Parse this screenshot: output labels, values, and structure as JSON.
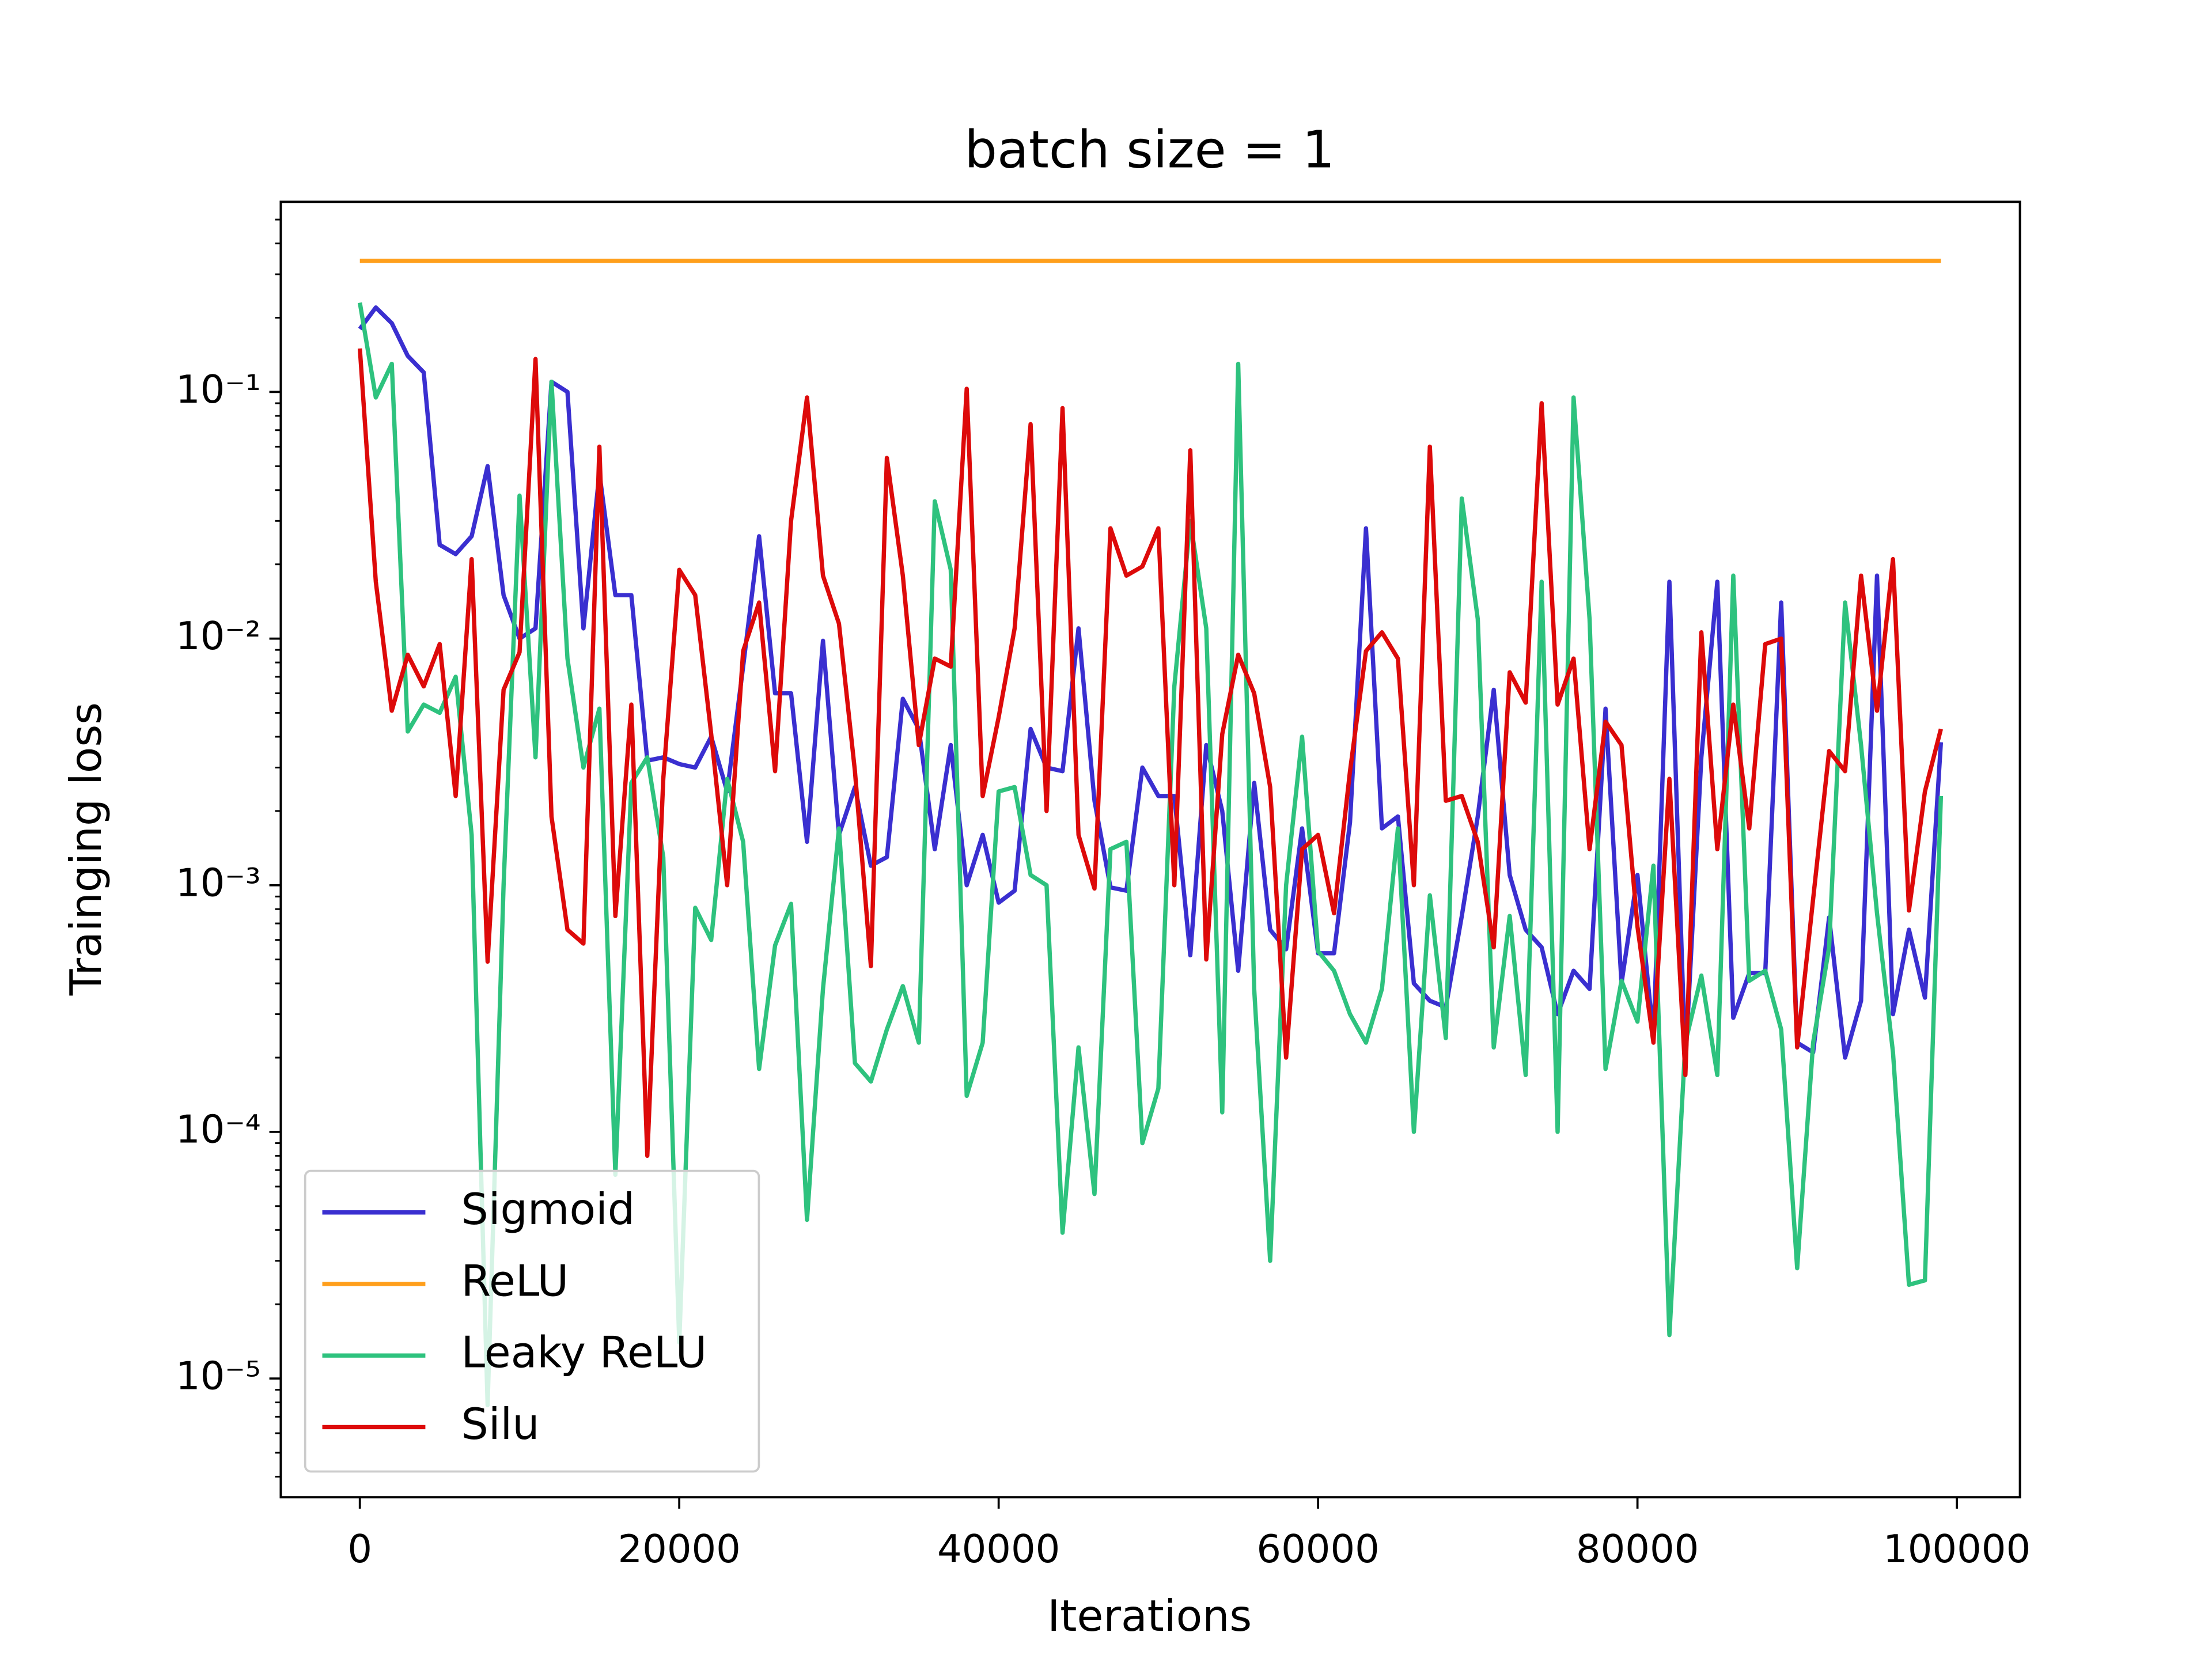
{
  "chart_data": {
    "type": "line",
    "title": "batch size = 1",
    "xlabel": "Iterations",
    "ylabel": "Trainging loss",
    "x": [
      0,
      1000,
      2000,
      3000,
      4000,
      5000,
      6000,
      7000,
      8000,
      9000,
      10000,
      11000,
      12000,
      13000,
      14000,
      15000,
      16000,
      17000,
      18000,
      19000,
      20000,
      21000,
      22000,
      23000,
      24000,
      25000,
      26000,
      27000,
      28000,
      29000,
      30000,
      31000,
      32000,
      33000,
      34000,
      35000,
      36000,
      37000,
      38000,
      39000,
      40000,
      41000,
      42000,
      43000,
      44000,
      45000,
      46000,
      47000,
      48000,
      49000,
      50000,
      51000,
      52000,
      53000,
      54000,
      55000,
      56000,
      57000,
      58000,
      59000,
      60000,
      61000,
      62000,
      63000,
      64000,
      65000,
      66000,
      67000,
      68000,
      69000,
      70000,
      71000,
      72000,
      73000,
      74000,
      75000,
      76000,
      77000,
      78000,
      79000,
      80000,
      81000,
      82000,
      83000,
      84000,
      85000,
      86000,
      87000,
      88000,
      89000,
      90000,
      91000,
      92000,
      93000,
      94000,
      95000,
      96000,
      97000,
      98000,
      99000
    ],
    "series": [
      {
        "name": "Sigmoid",
        "color": "#3a2fd0",
        "values": [
          0.18,
          0.22,
          0.19,
          0.14,
          0.12,
          0.024,
          0.022,
          0.026,
          0.05,
          0.015,
          0.01,
          0.011,
          0.11,
          0.1,
          0.011,
          0.047,
          0.015,
          0.015,
          0.0032,
          0.0033,
          0.0031,
          0.003,
          0.004,
          0.0024,
          0.0077,
          0.026,
          0.006,
          0.006,
          0.0015,
          0.0098,
          0.0016,
          0.0025,
          0.0012,
          0.0013,
          0.0057,
          0.0043,
          0.0014,
          0.0037,
          0.001,
          0.0016,
          0.00085,
          0.00095,
          0.0043,
          0.003,
          0.0029,
          0.011,
          0.0022,
          0.00098,
          0.00095,
          0.003,
          0.0023,
          0.0023,
          0.00052,
          0.0037,
          0.002,
          0.00045,
          0.0026,
          0.00066,
          0.00055,
          0.0017,
          0.00053,
          0.00053,
          0.0018,
          0.028,
          0.0017,
          0.0019,
          0.0004,
          0.00034,
          0.00032,
          0.00075,
          0.0019,
          0.0062,
          0.0011,
          0.00066,
          0.00056,
          0.0003,
          0.00045,
          0.00038,
          0.0052,
          0.0004,
          0.0011,
          0.00024,
          0.017,
          0.00019,
          0.0033,
          0.017,
          0.00029,
          0.00044,
          0.00044,
          0.014,
          0.00023,
          0.00021,
          0.00074,
          0.0002,
          0.00034,
          0.018,
          0.0003,
          0.00066,
          0.00035,
          0.0038
        ]
      },
      {
        "name": "ReLU",
        "color": "#ff9f1c",
        "values": [
          0.34,
          0.34,
          0.34,
          0.34,
          0.34,
          0.34,
          0.34,
          0.34,
          0.34,
          0.34,
          0.34,
          0.34,
          0.34,
          0.34,
          0.34,
          0.34,
          0.34,
          0.34,
          0.34,
          0.34,
          0.34,
          0.34,
          0.34,
          0.34,
          0.34,
          0.34,
          0.34,
          0.34,
          0.34,
          0.34,
          0.34,
          0.34,
          0.34,
          0.34,
          0.34,
          0.34,
          0.34,
          0.34,
          0.34,
          0.34,
          0.34,
          0.34,
          0.34,
          0.34,
          0.34,
          0.34,
          0.34,
          0.34,
          0.34,
          0.34,
          0.34,
          0.34,
          0.34,
          0.34,
          0.34,
          0.34,
          0.34,
          0.34,
          0.34,
          0.34,
          0.34,
          0.34,
          0.34,
          0.34,
          0.34,
          0.34,
          0.34,
          0.34,
          0.34,
          0.34,
          0.34,
          0.34,
          0.34,
          0.34,
          0.34,
          0.34,
          0.34,
          0.34,
          0.34,
          0.34,
          0.34,
          0.34,
          0.34,
          0.34,
          0.34,
          0.34,
          0.34,
          0.34,
          0.34,
          0.34,
          0.34,
          0.34,
          0.34,
          0.34,
          0.34,
          0.34,
          0.34,
          0.34,
          0.34,
          0.34
        ]
      },
      {
        "name": "Leaky ReLU",
        "color": "#2ec27e",
        "values": [
          0.23,
          0.095,
          0.13,
          0.0042,
          0.0054,
          0.005,
          0.007,
          0.0016,
          7.8e-06,
          0.001,
          0.038,
          0.0033,
          0.11,
          0.0083,
          0.003,
          0.0052,
          6.7e-05,
          0.0026,
          0.0033,
          0.0013,
          1.4e-05,
          0.00081,
          0.0006,
          0.0027,
          0.0015,
          0.00018,
          0.00057,
          0.00084,
          4.4e-05,
          0.00038,
          0.0017,
          0.00019,
          0.00016,
          0.00026,
          0.00039,
          0.00023,
          0.036,
          0.019,
          0.00014,
          0.00023,
          0.0024,
          0.0025,
          0.0011,
          0.001,
          3.9e-05,
          0.00022,
          5.6e-05,
          0.0014,
          0.0015,
          9e-05,
          0.00015,
          0.0064,
          0.03,
          0.011,
          0.00012,
          0.13,
          0.00038,
          3e-05,
          0.001,
          0.004,
          0.00054,
          0.00045,
          0.0003,
          0.00023,
          0.00038,
          0.0017,
          0.0001,
          0.00091,
          0.00024,
          0.037,
          0.012,
          0.00022,
          0.00075,
          0.00017,
          0.017,
          0.0001,
          0.095,
          0.012,
          0.00018,
          0.00041,
          0.00028,
          0.0012,
          1.5e-05,
          0.00023,
          0.00043,
          0.00017,
          0.018,
          0.00041,
          0.00045,
          0.00026,
          2.8e-05,
          0.00023,
          0.00056,
          0.014,
          0.0037,
          0.00077,
          0.00021,
          2.4e-05,
          2.5e-05,
          0.0023
        ]
      },
      {
        "name": "Silu",
        "color": "#dd0a0a",
        "values": [
          0.15,
          0.017,
          0.0051,
          0.0086,
          0.0064,
          0.0095,
          0.0023,
          0.021,
          0.00049,
          0.0062,
          0.0088,
          0.136,
          0.0019,
          0.00066,
          0.00058,
          0.06,
          0.00075,
          0.0054,
          8e-05,
          0.0027,
          0.019,
          0.015,
          0.0041,
          0.001,
          0.0089,
          0.014,
          0.0029,
          0.03,
          0.095,
          0.018,
          0.0115,
          0.0029,
          0.00047,
          0.054,
          0.018,
          0.0037,
          0.0083,
          0.0077,
          0.103,
          0.0023,
          0.0048,
          0.011,
          0.074,
          0.002,
          0.086,
          0.0016,
          0.00097,
          0.028,
          0.018,
          0.0196,
          0.028,
          0.001,
          0.058,
          0.0005,
          0.0041,
          0.0086,
          0.006,
          0.0025,
          0.0002,
          0.0014,
          0.0016,
          0.00077,
          0.0029,
          0.0089,
          0.0106,
          0.0083,
          0.001,
          0.06,
          0.0022,
          0.0023,
          0.0015,
          0.00056,
          0.0073,
          0.0055,
          0.09,
          0.0054,
          0.0083,
          0.0014,
          0.0046,
          0.0037,
          0.00068,
          0.00023,
          0.0027,
          0.00017,
          0.0106,
          0.0014,
          0.0054,
          0.0017,
          0.0095,
          0.01,
          0.00022,
          0.00088,
          0.0035,
          0.0029,
          0.018,
          0.0051,
          0.021,
          0.00079,
          0.0024,
          0.0043
        ]
      }
    ],
    "xlim": [
      -4950,
      103950
    ],
    "xticks": [
      0,
      20000,
      40000,
      60000,
      80000,
      100000
    ],
    "ylim": [
      3.3e-06,
      0.59
    ],
    "logy": true,
    "yticks": [
      {
        "value": 1e-05,
        "label": "10⁻⁵"
      },
      {
        "value": 0.0001,
        "label": "10⁻⁴"
      },
      {
        "value": 0.001,
        "label": "10⁻³"
      },
      {
        "value": 0.01,
        "label": "10⁻²"
      },
      {
        "value": 0.1,
        "label": "10⁻¹"
      }
    ],
    "yminorticks": [
      4e-06,
      5e-06,
      6e-06,
      7e-06,
      8e-06,
      9e-06,
      2e-05,
      3e-05,
      4e-05,
      5e-05,
      6e-05,
      7e-05,
      8e-05,
      9e-05,
      0.0002,
      0.0003,
      0.0004,
      0.0005,
      0.0006,
      0.0007,
      0.0008,
      0.0009,
      0.002,
      0.003,
      0.004,
      0.005,
      0.006,
      0.007,
      0.008,
      0.009,
      0.02,
      0.03,
      0.04,
      0.05,
      0.06,
      0.07,
      0.08,
      0.09,
      0.2,
      0.3,
      0.4,
      0.5
    ],
    "grid": false,
    "legend": "lower left"
  }
}
